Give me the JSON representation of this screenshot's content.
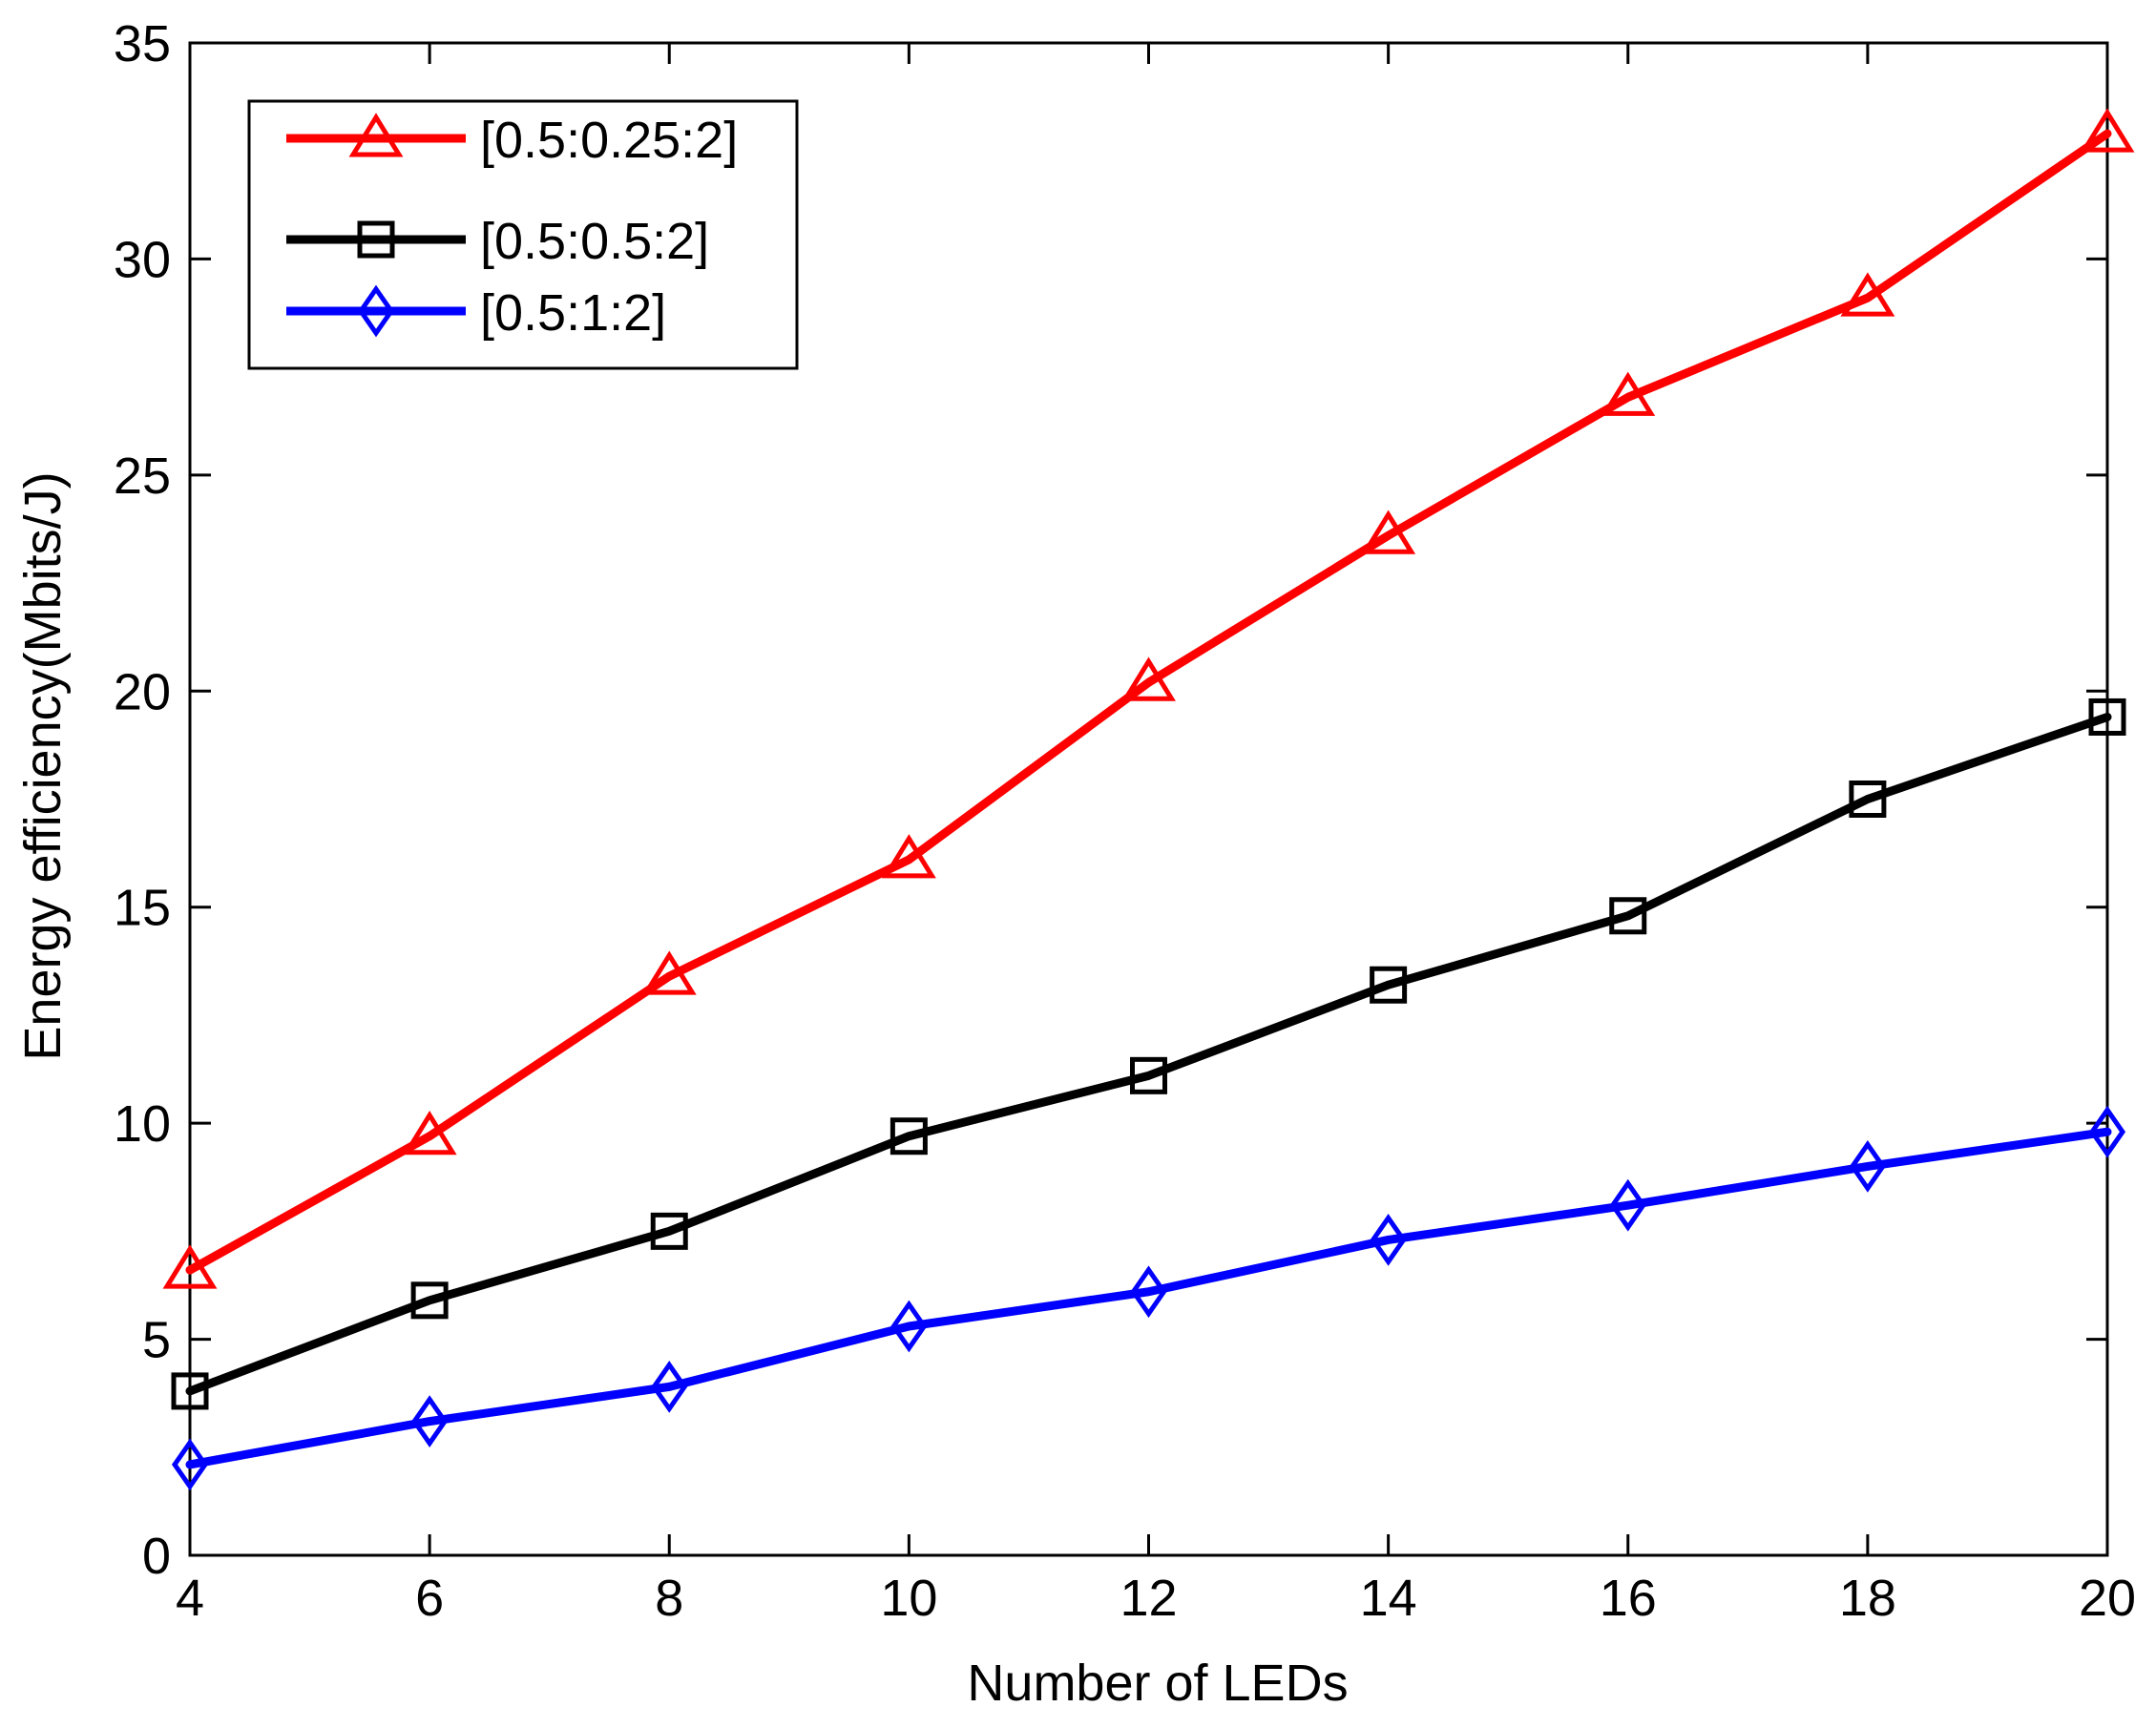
{
  "chart_data": {
    "type": "line",
    "title": "",
    "xlabel": "Number of LEDs",
    "ylabel": "Energy efficiency(Mbits/J)",
    "x": [
      4,
      6,
      8,
      10,
      12,
      14,
      16,
      18,
      20
    ],
    "xlim": [
      4,
      20
    ],
    "ylim": [
      0,
      35
    ],
    "xticks": [
      4,
      6,
      8,
      10,
      12,
      14,
      16,
      18,
      20
    ],
    "xtick_labels": [
      "4",
      "6",
      "8",
      "10",
      "12",
      "14",
      "16",
      "18",
      "20"
    ],
    "yticks": [
      0,
      5,
      10,
      15,
      20,
      25,
      30,
      35
    ],
    "ytick_labels": [
      "0",
      "5",
      "10",
      "15",
      "20",
      "25",
      "30",
      "35"
    ],
    "grid": false,
    "legend_position": "top-left",
    "series": [
      {
        "name": "[0.5:0.25:2]",
        "color": "#ff0000",
        "marker": "triangle",
        "values": [
          6.6,
          9.7,
          13.4,
          16.1,
          20.2,
          23.6,
          26.8,
          29.1,
          32.9
        ]
      },
      {
        "name": "[0.5:0.5:2]",
        "color": "#000000",
        "marker": "square",
        "values": [
          3.8,
          5.9,
          7.5,
          9.7,
          11.1,
          13.2,
          14.8,
          17.5,
          19.4
        ]
      },
      {
        "name": "[0.5:1:2]",
        "color": "#0000ff",
        "marker": "diamond",
        "values": [
          2.1,
          3.1,
          3.9,
          5.3,
          6.1,
          7.3,
          8.1,
          9.0,
          9.8
        ]
      }
    ]
  }
}
